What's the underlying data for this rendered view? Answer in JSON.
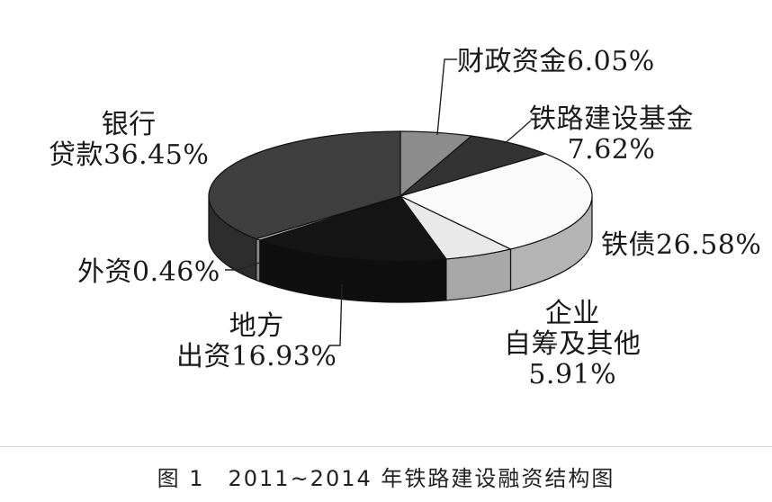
{
  "chart_data": {
    "type": "pie",
    "title": "",
    "caption": "图 1　2011~2014 年铁路建设融资结构图",
    "slices": [
      {
        "name": "财政资金",
        "value": 6.05,
        "label_lines": [
          "财政资金6.05%"
        ],
        "color": "#8c8c8c"
      },
      {
        "name": "铁路建设基金",
        "value": 7.62,
        "label_lines": [
          "铁路建设基金",
          "7.62%"
        ],
        "color": "#333333"
      },
      {
        "name": "铁债",
        "value": 26.58,
        "label_lines": [
          "铁债26.58%"
        ],
        "color": "#fafafa"
      },
      {
        "name": "企业自筹及其他",
        "value": 5.91,
        "label_lines": [
          "企业",
          "自筹及其他",
          "5.91%"
        ],
        "color": "#e9e9e9"
      },
      {
        "name": "地方出资",
        "value": 16.93,
        "label_lines": [
          "地方",
          "出资16.93%"
        ],
        "color": "#151515"
      },
      {
        "name": "外资",
        "value": 0.46,
        "label_lines": [
          "外资0.46%"
        ],
        "color": "#bdbdbd"
      },
      {
        "name": "银行贷款",
        "value": 36.45,
        "label_lines": [
          "银行",
          "贷款36.45%"
        ],
        "color": "#3f3f3f"
      }
    ]
  }
}
